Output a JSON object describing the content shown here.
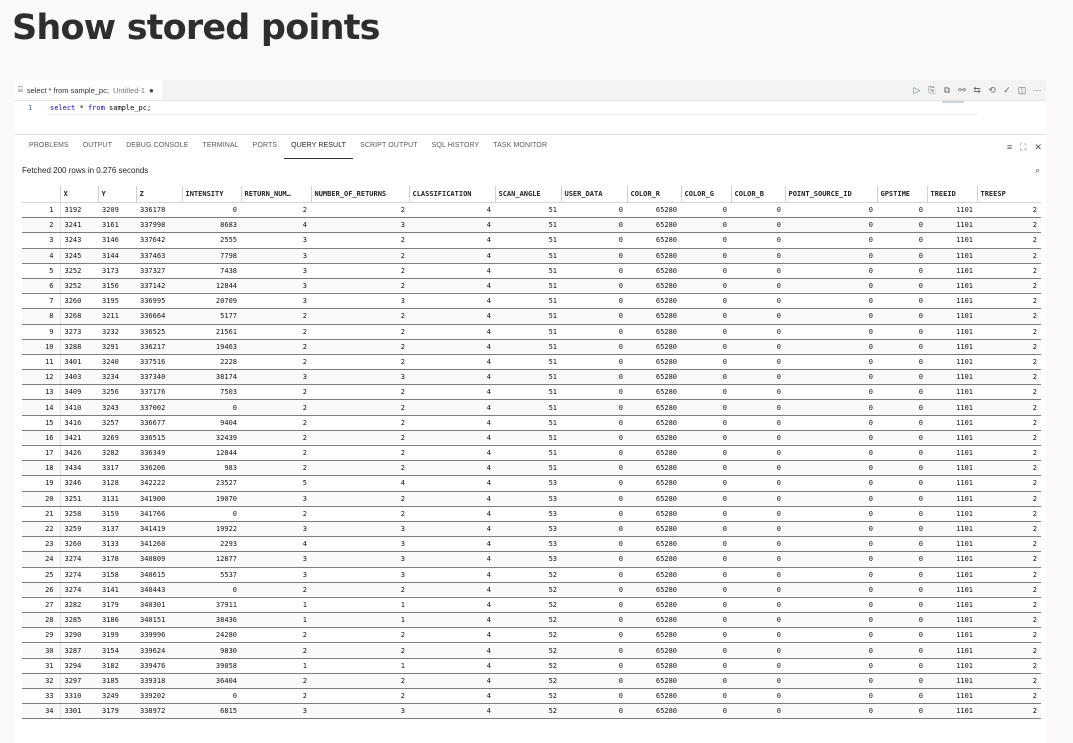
{
  "page": {
    "heading": "Show stored points"
  },
  "editor": {
    "tab": {
      "name": "select * from sample_pc;",
      "sub": "Untitled-1",
      "modified": "●"
    },
    "line_number": "1",
    "code": {
      "kw1": "select",
      "mid": " * ",
      "kw2": "from",
      "rest": " sample_pc;"
    },
    "toolbar_icons": [
      "run-icon",
      "run-script-icon",
      "explain-plan-icon",
      "autotrace-icon",
      "format-icon",
      "history-icon",
      "commit-icon",
      "split-editor-icon",
      "more-icon"
    ]
  },
  "panel": {
    "tabs": [
      "PROBLEMS",
      "OUTPUT",
      "DEBUG CONSOLE",
      "TERMINAL",
      "PORTS",
      "QUERY RESULT",
      "SCRIPT OUTPUT",
      "SQL HISTORY",
      "TASK MONITOR"
    ],
    "active_tab": "QUERY RESULT",
    "status": "Fetched 200 rows in 0.276 seconds"
  },
  "grid": {
    "columns": [
      "X",
      "Y",
      "Z",
      "INTENSITY",
      "RETURN_NUM…",
      "NUMBER_OF_RETURNS",
      "CLASSIFICATION",
      "SCAN_ANGLE",
      "USER_DATA",
      "COLOR_R",
      "COLOR_G",
      "COLOR_B",
      "POINT_SOURCE_ID",
      "GPSTIME",
      "TREEID",
      "TREESP"
    ],
    "rows": [
      [
        "1",
        "3192",
        "3209",
        "336178",
        "0",
        "2",
        "2",
        "4",
        "51",
        "0",
        "65280",
        "0",
        "0",
        "0",
        "0",
        "1101",
        "2"
      ],
      [
        "2",
        "3241",
        "3161",
        "337998",
        "8683",
        "4",
        "3",
        "4",
        "51",
        "0",
        "65280",
        "0",
        "0",
        "0",
        "0",
        "1101",
        "2"
      ],
      [
        "3",
        "3243",
        "3146",
        "337642",
        "2555",
        "3",
        "2",
        "4",
        "51",
        "0",
        "65280",
        "0",
        "0",
        "0",
        "0",
        "1101",
        "2"
      ],
      [
        "4",
        "3245",
        "3144",
        "337463",
        "7798",
        "3",
        "2",
        "4",
        "51",
        "0",
        "65280",
        "0",
        "0",
        "0",
        "0",
        "1101",
        "2"
      ],
      [
        "5",
        "3252",
        "3173",
        "337327",
        "7438",
        "3",
        "2",
        "4",
        "51",
        "0",
        "65280",
        "0",
        "0",
        "0",
        "0",
        "1101",
        "2"
      ],
      [
        "6",
        "3252",
        "3156",
        "337142",
        "12844",
        "3",
        "2",
        "4",
        "51",
        "0",
        "65280",
        "0",
        "0",
        "0",
        "0",
        "1101",
        "2"
      ],
      [
        "7",
        "3260",
        "3195",
        "336995",
        "20709",
        "3",
        "3",
        "4",
        "51",
        "0",
        "65280",
        "0",
        "0",
        "0",
        "0",
        "1101",
        "2"
      ],
      [
        "8",
        "3268",
        "3211",
        "336664",
        "5177",
        "2",
        "2",
        "4",
        "51",
        "0",
        "65280",
        "0",
        "0",
        "0",
        "0",
        "1101",
        "2"
      ],
      [
        "9",
        "3273",
        "3232",
        "336525",
        "21561",
        "2",
        "2",
        "4",
        "51",
        "0",
        "65280",
        "0",
        "0",
        "0",
        "0",
        "1101",
        "2"
      ],
      [
        "10",
        "3288",
        "3291",
        "336217",
        "19463",
        "2",
        "2",
        "4",
        "51",
        "0",
        "65280",
        "0",
        "0",
        "0",
        "0",
        "1101",
        "2"
      ],
      [
        "11",
        "3401",
        "3240",
        "337516",
        "2228",
        "2",
        "2",
        "4",
        "51",
        "0",
        "65280",
        "0",
        "0",
        "0",
        "0",
        "1101",
        "2"
      ],
      [
        "12",
        "3403",
        "3234",
        "337340",
        "38174",
        "3",
        "3",
        "4",
        "51",
        "0",
        "65280",
        "0",
        "0",
        "0",
        "0",
        "1101",
        "2"
      ],
      [
        "13",
        "3409",
        "3256",
        "337176",
        "7503",
        "2",
        "2",
        "4",
        "51",
        "0",
        "65280",
        "0",
        "0",
        "0",
        "0",
        "1101",
        "2"
      ],
      [
        "14",
        "3410",
        "3243",
        "337002",
        "0",
        "2",
        "2",
        "4",
        "51",
        "0",
        "65280",
        "0",
        "0",
        "0",
        "0",
        "1101",
        "2"
      ],
      [
        "15",
        "3416",
        "3257",
        "336677",
        "9404",
        "2",
        "2",
        "4",
        "51",
        "0",
        "65280",
        "0",
        "0",
        "0",
        "0",
        "1101",
        "2"
      ],
      [
        "16",
        "3421",
        "3269",
        "336515",
        "32439",
        "2",
        "2",
        "4",
        "51",
        "0",
        "65280",
        "0",
        "0",
        "0",
        "0",
        "1101",
        "2"
      ],
      [
        "17",
        "3426",
        "3282",
        "336349",
        "12844",
        "2",
        "2",
        "4",
        "51",
        "0",
        "65280",
        "0",
        "0",
        "0",
        "0",
        "1101",
        "2"
      ],
      [
        "18",
        "3434",
        "3317",
        "336206",
        "983",
        "2",
        "2",
        "4",
        "51",
        "0",
        "65280",
        "0",
        "0",
        "0",
        "0",
        "1101",
        "2"
      ],
      [
        "19",
        "3246",
        "3128",
        "342222",
        "23527",
        "5",
        "4",
        "4",
        "53",
        "0",
        "65280",
        "0",
        "0",
        "0",
        "0",
        "1101",
        "2"
      ],
      [
        "20",
        "3251",
        "3131",
        "341900",
        "19070",
        "3",
        "2",
        "4",
        "53",
        "0",
        "65280",
        "0",
        "0",
        "0",
        "0",
        "1101",
        "2"
      ],
      [
        "21",
        "3258",
        "3159",
        "341766",
        "0",
        "2",
        "2",
        "4",
        "53",
        "0",
        "65280",
        "0",
        "0",
        "0",
        "0",
        "1101",
        "2"
      ],
      [
        "22",
        "3259",
        "3137",
        "341419",
        "19922",
        "3",
        "3",
        "4",
        "53",
        "0",
        "65280",
        "0",
        "0",
        "0",
        "0",
        "1101",
        "2"
      ],
      [
        "23",
        "3260",
        "3133",
        "341260",
        "2293",
        "4",
        "3",
        "4",
        "53",
        "0",
        "65280",
        "0",
        "0",
        "0",
        "0",
        "1101",
        "2"
      ],
      [
        "24",
        "3274",
        "3178",
        "340809",
        "12877",
        "3",
        "3",
        "4",
        "53",
        "0",
        "65280",
        "0",
        "0",
        "0",
        "0",
        "1101",
        "2"
      ],
      [
        "25",
        "3274",
        "3158",
        "340615",
        "5537",
        "3",
        "3",
        "4",
        "52",
        "0",
        "65280",
        "0",
        "0",
        "0",
        "0",
        "1101",
        "2"
      ],
      [
        "26",
        "3274",
        "3141",
        "340443",
        "0",
        "2",
        "2",
        "4",
        "52",
        "0",
        "65280",
        "0",
        "0",
        "0",
        "0",
        "1101",
        "2"
      ],
      [
        "27",
        "3282",
        "3179",
        "340301",
        "37911",
        "1",
        "1",
        "4",
        "52",
        "0",
        "65280",
        "0",
        "0",
        "0",
        "0",
        "1101",
        "2"
      ],
      [
        "28",
        "3285",
        "3186",
        "340151",
        "38436",
        "1",
        "1",
        "4",
        "52",
        "0",
        "65280",
        "0",
        "0",
        "0",
        "0",
        "1101",
        "2"
      ],
      [
        "29",
        "3290",
        "3199",
        "339996",
        "24280",
        "2",
        "2",
        "4",
        "52",
        "0",
        "65280",
        "0",
        "0",
        "0",
        "0",
        "1101",
        "2"
      ],
      [
        "30",
        "3287",
        "3154",
        "339624",
        "9830",
        "2",
        "2",
        "4",
        "52",
        "0",
        "65280",
        "0",
        "0",
        "0",
        "0",
        "1101",
        "2"
      ],
      [
        "31",
        "3294",
        "3182",
        "339476",
        "39058",
        "1",
        "1",
        "4",
        "52",
        "0",
        "65280",
        "0",
        "0",
        "0",
        "0",
        "1101",
        "2"
      ],
      [
        "32",
        "3297",
        "3185",
        "339318",
        "36404",
        "2",
        "2",
        "4",
        "52",
        "0",
        "65280",
        "0",
        "0",
        "0",
        "0",
        "1101",
        "2"
      ],
      [
        "33",
        "3310",
        "3249",
        "339202",
        "0",
        "2",
        "2",
        "4",
        "52",
        "0",
        "65280",
        "0",
        "0",
        "0",
        "0",
        "1101",
        "2"
      ],
      [
        "34",
        "3301",
        "3179",
        "338972",
        "6815",
        "3",
        "3",
        "4",
        "52",
        "0",
        "65280",
        "0",
        "0",
        "0",
        "0",
        "1101",
        "2"
      ]
    ]
  }
}
